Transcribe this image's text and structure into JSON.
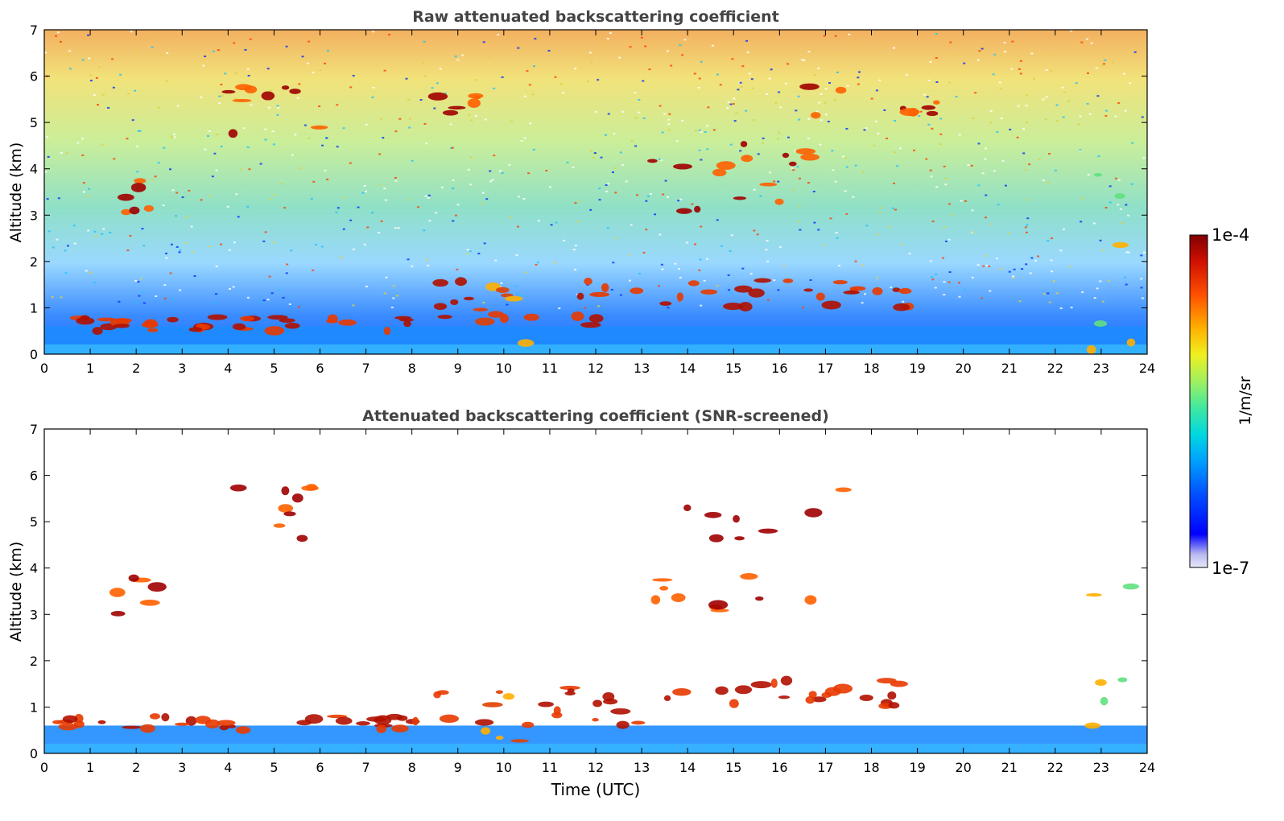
{
  "figure": {
    "colorbar": {
      "max_label": "1e-4",
      "min_label": "1e-7",
      "unit_label": "1/m/sr",
      "scale": "log",
      "range": [
        1e-07,
        0.0001
      ],
      "colormap": [
        "#e8e8f8",
        "#b8b8f0",
        "#0000ff",
        "#0050ff",
        "#00a0ff",
        "#00d8e0",
        "#40e8a0",
        "#a0f060",
        "#f0f020",
        "#ffb000",
        "#ff5000",
        "#d01000",
        "#800000"
      ]
    },
    "bottom_xlabel": "Time (UTC)"
  },
  "chart_data": [
    {
      "type": "heatmap",
      "title": "Raw attenuated backscattering coefficient",
      "xlabel": "",
      "ylabel": "Altitude (km)",
      "xlim": [
        0,
        24
      ],
      "ylim": [
        0,
        7
      ],
      "xticks": [
        "0",
        "1",
        "2",
        "3",
        "4",
        "5",
        "6",
        "7",
        "8",
        "9",
        "10",
        "11",
        "12",
        "13",
        "14",
        "15",
        "16",
        "17",
        "18",
        "19",
        "20",
        "21",
        "22",
        "23",
        "24"
      ],
      "yticks": [
        "0",
        "1",
        "2",
        "3",
        "4",
        "5",
        "6",
        "7"
      ],
      "features": [
        {
          "kind": "boundary_layer",
          "t": [
            0,
            24
          ],
          "alt": [
            0,
            0.6
          ]
        },
        {
          "kind": "cloud_layer",
          "t": [
            0,
            8.2
          ],
          "alt": [
            0.5,
            0.8
          ]
        },
        {
          "kind": "cloud_layer",
          "t": [
            8.5,
            13
          ],
          "alt": [
            0.6,
            1.6
          ]
        },
        {
          "kind": "cloud_layer",
          "t": [
            13.5,
            19
          ],
          "alt": [
            1.0,
            1.6
          ]
        },
        {
          "kind": "precipitation",
          "t": [
            9.4,
            10.8
          ],
          "alt": [
            0,
            1.5
          ]
        },
        {
          "kind": "high_cloud",
          "t": [
            1.5,
            2.5
          ],
          "alt": [
            3.0,
            3.8
          ]
        },
        {
          "kind": "high_cloud",
          "t": [
            3.8,
            6
          ],
          "alt": [
            4.6,
            5.8
          ]
        },
        {
          "kind": "high_cloud",
          "t": [
            8.5,
            9.5
          ],
          "alt": [
            5.0,
            5.6
          ]
        },
        {
          "kind": "high_cloud",
          "t": [
            13,
            17.5
          ],
          "alt": [
            3.0,
            5.8
          ]
        },
        {
          "kind": "high_cloud",
          "t": [
            18.5,
            19.5
          ],
          "alt": [
            5.0,
            5.7
          ]
        },
        {
          "kind": "deep_cloud",
          "t": [
            22.7,
            23.9
          ],
          "alt": [
            0,
            3.9
          ]
        }
      ]
    },
    {
      "type": "heatmap",
      "title": "Attenuated backscattering coefficient (SNR-screened)",
      "xlabel": "Time (UTC)",
      "ylabel": "Altitude (km)",
      "xlim": [
        0,
        24
      ],
      "ylim": [
        0,
        7
      ],
      "xticks": [
        "0",
        "1",
        "2",
        "3",
        "4",
        "5",
        "6",
        "7",
        "8",
        "9",
        "10",
        "11",
        "12",
        "13",
        "14",
        "15",
        "16",
        "17",
        "18",
        "19",
        "20",
        "21",
        "22",
        "23",
        "24"
      ],
      "yticks": [
        "0",
        "1",
        "2",
        "3",
        "4",
        "5",
        "6",
        "7"
      ],
      "features": [
        {
          "kind": "boundary_layer",
          "t": [
            0,
            24
          ],
          "alt": [
            0,
            0.6
          ]
        },
        {
          "kind": "cloud_layer",
          "t": [
            0,
            8.2
          ],
          "alt": [
            0.5,
            0.8
          ]
        },
        {
          "kind": "cloud_layer",
          "t": [
            8.5,
            13
          ],
          "alt": [
            0.6,
            1.6
          ]
        },
        {
          "kind": "cloud_layer",
          "t": [
            13.5,
            19
          ],
          "alt": [
            1.0,
            1.6
          ]
        },
        {
          "kind": "precipitation",
          "t": [
            9.4,
            10.8
          ],
          "alt": [
            0,
            1.5
          ]
        },
        {
          "kind": "high_cloud",
          "t": [
            1.5,
            2.5
          ],
          "alt": [
            3.0,
            3.8
          ]
        },
        {
          "kind": "high_cloud",
          "t": [
            3.8,
            6
          ],
          "alt": [
            4.6,
            5.8
          ]
        },
        {
          "kind": "high_cloud",
          "t": [
            13,
            17.5
          ],
          "alt": [
            3.0,
            5.8
          ]
        },
        {
          "kind": "deep_cloud",
          "t": [
            22.7,
            23.9
          ],
          "alt": [
            0,
            3.9
          ]
        }
      ]
    }
  ]
}
